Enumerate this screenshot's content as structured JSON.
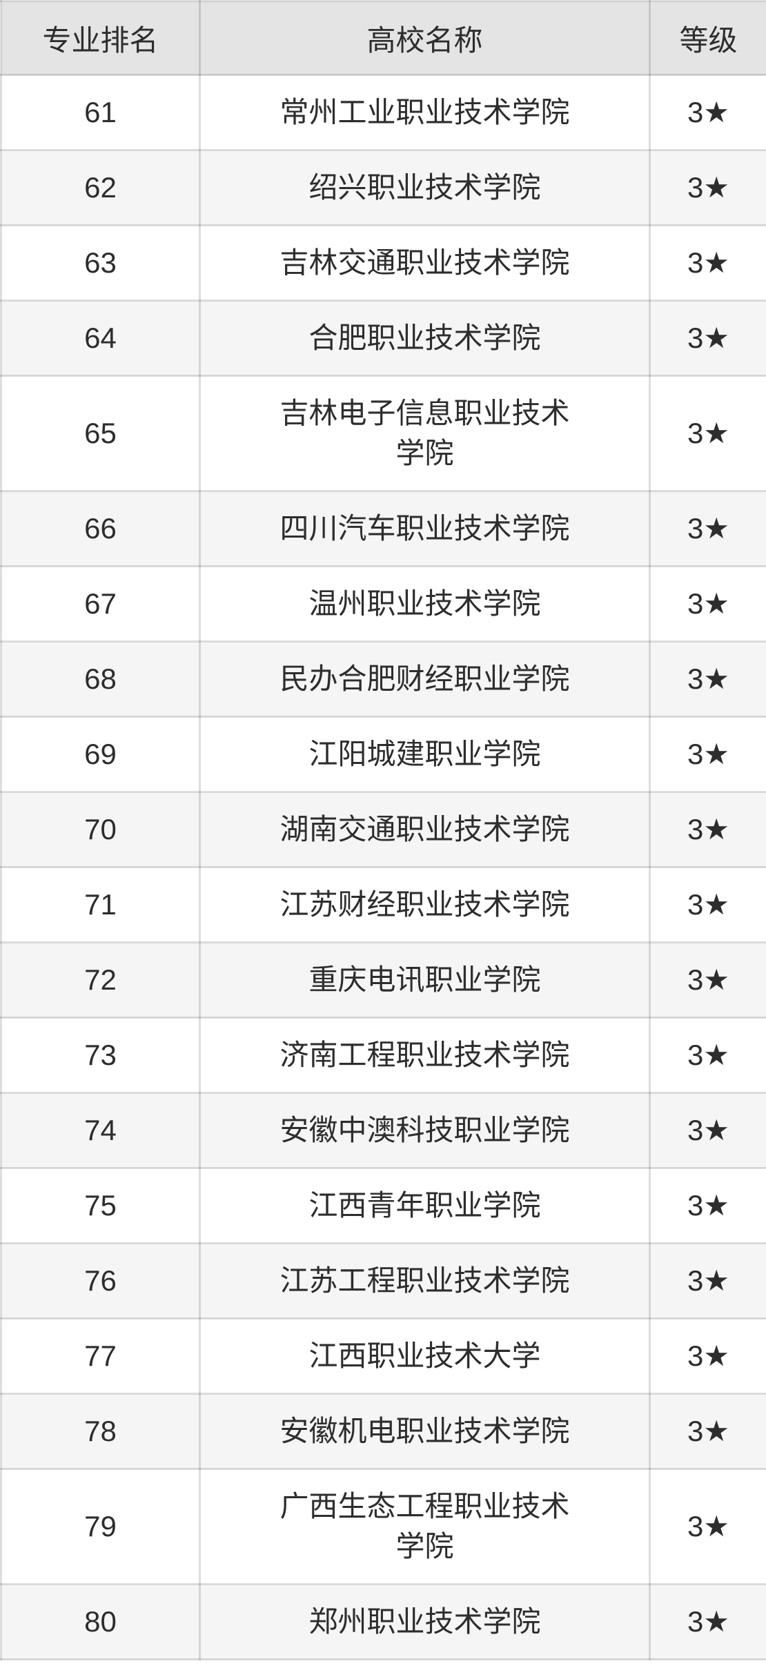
{
  "chart_data": {
    "type": "table",
    "columns": [
      "专业排名",
      "高校名称",
      "等级"
    ],
    "rows": [
      {
        "rank": "61",
        "name": "常州工业职业技术学院",
        "grade": "3★"
      },
      {
        "rank": "62",
        "name": "绍兴职业技术学院",
        "grade": "3★"
      },
      {
        "rank": "63",
        "name": "吉林交通职业技术学院",
        "grade": "3★"
      },
      {
        "rank": "64",
        "name": "合肥职业技术学院",
        "grade": "3★"
      },
      {
        "rank": "65",
        "name": "吉林电子信息职业技术\n学院",
        "grade": "3★"
      },
      {
        "rank": "66",
        "name": "四川汽车职业技术学院",
        "grade": "3★"
      },
      {
        "rank": "67",
        "name": "温州职业技术学院",
        "grade": "3★"
      },
      {
        "rank": "68",
        "name": "民办合肥财经职业学院",
        "grade": "3★"
      },
      {
        "rank": "69",
        "name": "江阳城建职业学院",
        "grade": "3★"
      },
      {
        "rank": "70",
        "name": "湖南交通职业技术学院",
        "grade": "3★"
      },
      {
        "rank": "71",
        "name": "江苏财经职业技术学院",
        "grade": "3★"
      },
      {
        "rank": "72",
        "name": "重庆电讯职业学院",
        "grade": "3★"
      },
      {
        "rank": "73",
        "name": "济南工程职业技术学院",
        "grade": "3★"
      },
      {
        "rank": "74",
        "name": "安徽中澳科技职业学院",
        "grade": "3★"
      },
      {
        "rank": "75",
        "name": "江西青年职业学院",
        "grade": "3★"
      },
      {
        "rank": "76",
        "name": "江苏工程职业技术学院",
        "grade": "3★"
      },
      {
        "rank": "77",
        "name": "江西职业技术大学",
        "grade": "3★"
      },
      {
        "rank": "78",
        "name": "安徽机电职业技术学院",
        "grade": "3★"
      },
      {
        "rank": "79",
        "name": "广西生态工程职业技术\n学院",
        "grade": "3★"
      },
      {
        "rank": "80",
        "name": "郑州职业技术学院",
        "grade": "3★"
      }
    ]
  },
  "colors": {
    "header_bg": "#e4e4e4",
    "row_bg": "#ffffff",
    "row_alt_bg": "#f5f5f5",
    "border": "#dadada",
    "text": "#2d2d2d"
  }
}
